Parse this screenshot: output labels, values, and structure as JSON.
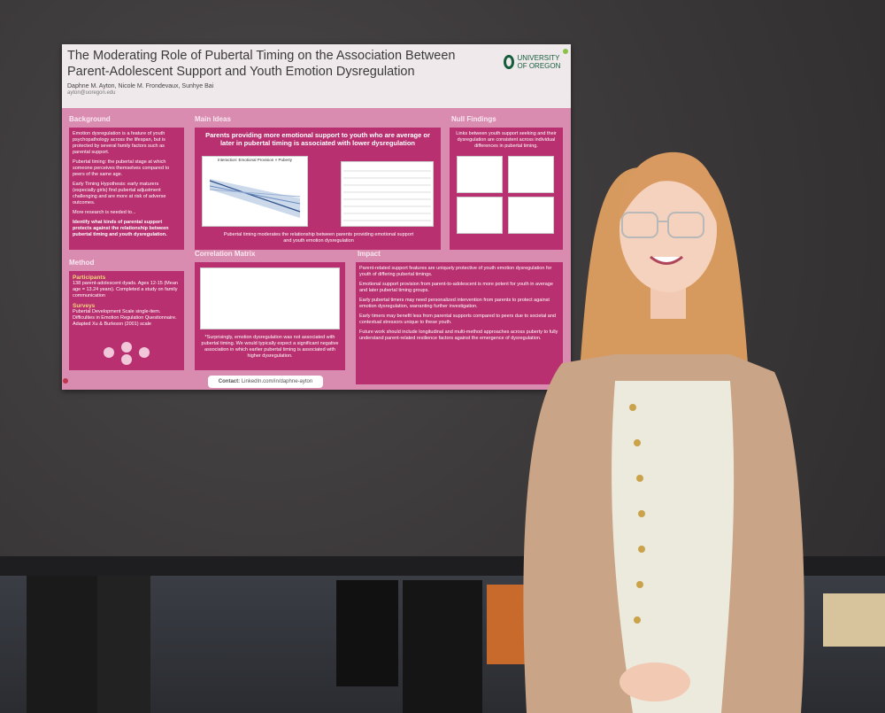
{
  "poster": {
    "title": "The Moderating Role of Pubertal Timing on the Association Between Parent-Adolescent Support and Youth Emotion Dysregulation",
    "logo_text": "UNIVERSITY OF OREGON",
    "authors": "Daphne M. Ayton, Nicole M. Frondevaux, Sunhye Bai",
    "email": "ayton@uoregon.edu",
    "sections": {
      "background": "Background",
      "main_ideas": "Main Ideas",
      "null_findings": "Null Findings",
      "method": "Method",
      "correlation_matrix": "Correlation Matrix",
      "impact": "Impact"
    },
    "background_bullets": [
      "Emotion dysregulation is a feature of youth psychopathology across the lifespan, but is protected by several family factors such as parental support.",
      "Pubertal timing: the pubertal stage at which someone perceives themselves compared to peers of the same age.",
      "Early Timing Hypothesis: early maturers (especially girls) find pubertal adjustment challenging and are more at risk of adverse outcomes.",
      "More research is needed to..."
    ],
    "background_question": "Identify what kinds of parental support protects against the relationship between pubertal timing and youth dysregulation.",
    "main_headline": "Parents providing more emotional support to youth who are average or later in pubertal timing is associated with lower dysregulation",
    "main_caption": "Pubertal timing moderates the relationship between parents providing emotional support and youth emotion dysregulation",
    "chart_title": "Interaction: Emotional Provision × Puberty",
    "null_text": "Links between youth support seeking and their dysregulation are consistent across individual differences in pubertal timing.",
    "method_participants_h": "Participants",
    "method_participants": "138 parent-adolescent dyads. Ages 12-15 (Mean age = 13.24 years). Completed a study on family communication",
    "method_surveys_h": "Surveys",
    "method_surveys": "Pubertal Development Scale single-item. Difficulties in Emotion Regulation Questionnaire. Adapted Xu & Burleson (2001) scale",
    "corr_note": "*Surprisingly, emotion dysregulation was not associated with pubertal timing. We would typically expect a significant negative association in which earlier pubertal timing is associated with higher dysregulation.",
    "impact_bullets": [
      "Parent-related support features are uniquely protective of youth emotion dysregulation for youth of differing pubertal timings.",
      "Emotional support provision from parent-to-adolescent is more potent for youth in average and later pubertal timing groups.",
      "Early pubertal timers may need personalized intervention from parents to protect against emotion dysregulation, warranting further investigation.",
      "Early timers may benefit less from parental supports compared to peers due to societal and contextual stressors unique to these youth.",
      "Future work should include longitudinal and multi-method approaches across puberty to fully understand parent-related resilience factors against the emergence of dysregulation."
    ],
    "contact_label": "Contact:",
    "contact_value": "LinkedIn.com/in/daphne-ayton"
  },
  "colors": {
    "poster_pink": "#d98cb0",
    "box_magenta": "#b8306f",
    "oregon_green": "#145d3b"
  }
}
